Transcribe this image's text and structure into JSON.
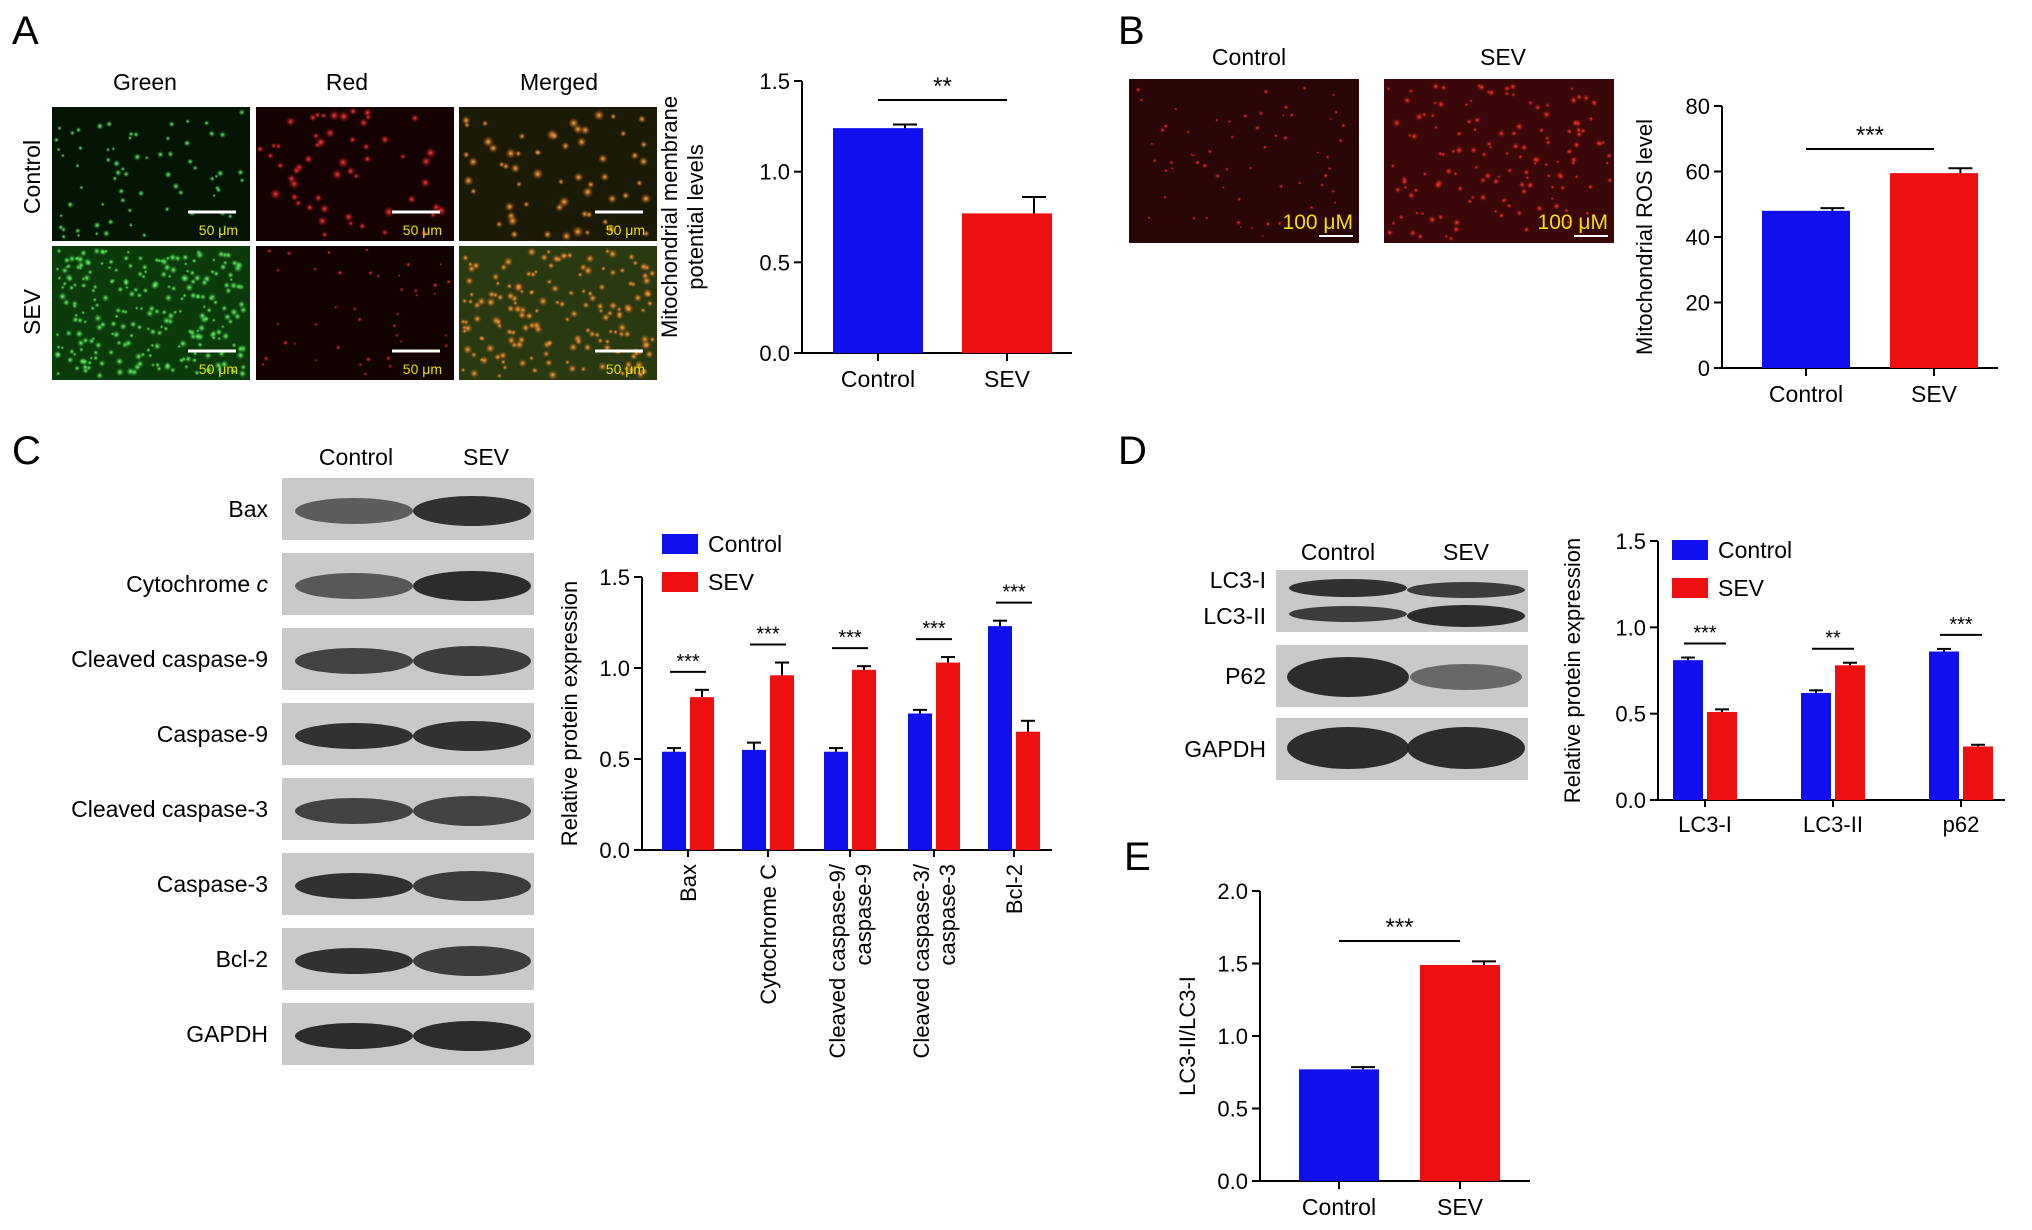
{
  "colors": {
    "control": "#1010ee",
    "sev": "#ee1010",
    "axis": "#000000"
  },
  "panels": {
    "A": {
      "letter": "A",
      "micro": {
        "col_labels": [
          "Green",
          "Red",
          "Merged"
        ],
        "row_labels": [
          "Control",
          "SEV"
        ],
        "scale_text": "50 μm",
        "tiles": [
          [
            "green-sparse",
            "red-dense",
            "merged-orange"
          ],
          [
            "green-dense",
            "red-sparse",
            "merged-mixed"
          ]
        ]
      }
    },
    "B": {
      "letter": "B",
      "micro": {
        "col_labels": [
          "Control",
          "SEV"
        ],
        "scale_text": "100 μM",
        "tiles": [
          "red-faint",
          "red-bright"
        ]
      }
    },
    "C": {
      "letter": "C",
      "blot": {
        "lanes": [
          "Control",
          "SEV"
        ],
        "rows": [
          {
            "prefix": "Bax",
            "italic": ""
          },
          {
            "prefix": "Cytochrome ",
            "italic": "c"
          },
          {
            "prefix": "Cleaved caspase-9",
            "italic": ""
          },
          {
            "prefix": "Caspase-9",
            "italic": ""
          },
          {
            "prefix": "Cleaved caspase-3",
            "italic": ""
          },
          {
            "prefix": "Caspase-3",
            "italic": ""
          },
          {
            "prefix": "Bcl-2",
            "italic": ""
          },
          {
            "prefix": "GAPDH",
            "italic": ""
          }
        ]
      }
    },
    "D": {
      "letter": "D",
      "blot": {
        "lanes": [
          "Control",
          "SEV"
        ],
        "rows": [
          {
            "prefix": "LC3-I",
            "italic": ""
          },
          {
            "prefix": "LC3-II",
            "italic": ""
          },
          {
            "prefix": "P62",
            "italic": ""
          },
          {
            "prefix": "GAPDH",
            "italic": ""
          }
        ]
      }
    },
    "E": {
      "letter": "E"
    }
  },
  "chart_data": [
    {
      "id": "A",
      "type": "bar",
      "categories": [
        "Control",
        "SEV"
      ],
      "values": [
        1.24,
        0.77
      ],
      "errors": [
        0.02,
        0.09
      ],
      "ylabel": "Mitochondrial membrane potential levels",
      "ylabel_lines": [
        "Mitochondrial membrane",
        "potential levels"
      ],
      "ylim": [
        0,
        1.5
      ],
      "yticks": [
        "0.0",
        "0.5",
        "1.0",
        "1.5"
      ],
      "significance": "**",
      "grid": false
    },
    {
      "id": "B",
      "type": "bar",
      "categories": [
        "Control",
        "SEV"
      ],
      "values": [
        48,
        59.5
      ],
      "errors": [
        0.8,
        1.5
      ],
      "ylabel": "Mitochondrial ROS level",
      "ylabel_lines": [
        "Mitochondrial ROS level"
      ],
      "ylim": [
        0,
        80
      ],
      "yticks": [
        "0",
        "20",
        "40",
        "60",
        "80"
      ],
      "significance": "***",
      "grid": false
    },
    {
      "id": "C",
      "type": "bar",
      "categories": [
        "Bax",
        "Cytochrome C",
        "Cleaved caspase-9/ caspase-9",
        "Cleaved caspase-3/ caspase-3",
        "Bcl-2"
      ],
      "category_lines": [
        [
          "Bax"
        ],
        [
          "Cytochrome C"
        ],
        [
          "Cleaved caspase-9/",
          "caspase-9"
        ],
        [
          "Cleaved caspase-3/",
          "caspase-3"
        ],
        [
          "Bcl-2"
        ]
      ],
      "series": [
        {
          "name": "Control",
          "values": [
            0.54,
            0.55,
            0.54,
            0.75,
            1.23
          ],
          "errors": [
            0.02,
            0.04,
            0.02,
            0.02,
            0.03
          ]
        },
        {
          "name": "SEV",
          "values": [
            0.84,
            0.96,
            0.99,
            1.03,
            0.65
          ],
          "errors": [
            0.04,
            0.07,
            0.02,
            0.03,
            0.06
          ]
        }
      ],
      "ylabel": "Relative protein expression",
      "ylabel_lines": [
        "Relative protein expression"
      ],
      "ylim": [
        0,
        1.5
      ],
      "yticks": [
        "0.0",
        "0.5",
        "1.0",
        "1.5"
      ],
      "significance": [
        "***",
        "***",
        "***",
        "***",
        "***"
      ],
      "legend": "top-left",
      "grid": false
    },
    {
      "id": "D",
      "type": "bar",
      "categories": [
        "LC3-I",
        "LC3-II",
        "p62"
      ],
      "category_lines": [
        [
          "LC3-I"
        ],
        [
          "LC3-II"
        ],
        [
          "p62"
        ]
      ],
      "series": [
        {
          "name": "Control",
          "values": [
            0.81,
            0.62,
            0.86
          ],
          "errors": [
            0.015,
            0.015,
            0.015
          ]
        },
        {
          "name": "SEV",
          "values": [
            0.51,
            0.78,
            0.31
          ],
          "errors": [
            0.015,
            0.015,
            0.01
          ]
        }
      ],
      "ylabel": "Relative protein expression",
      "ylabel_lines": [
        "Relative protein expression"
      ],
      "ylim": [
        0,
        1.5
      ],
      "yticks": [
        "0.0",
        "0.5",
        "1.0",
        "1.5"
      ],
      "significance": [
        "***",
        "**",
        "***"
      ],
      "legend": "top-left",
      "grid": false
    },
    {
      "id": "E",
      "type": "bar",
      "categories": [
        "Control",
        "SEV"
      ],
      "values": [
        0.77,
        1.49
      ],
      "errors": [
        0.015,
        0.025
      ],
      "ylabel": "LC3-II/LC3-I",
      "ylabel_lines": [
        "LC3-II/LC3-I"
      ],
      "ylim": [
        0,
        2.0
      ],
      "yticks": [
        "0.0",
        "0.5",
        "1.0",
        "1.5",
        "2.0"
      ],
      "significance": "***",
      "grid": false
    }
  ]
}
